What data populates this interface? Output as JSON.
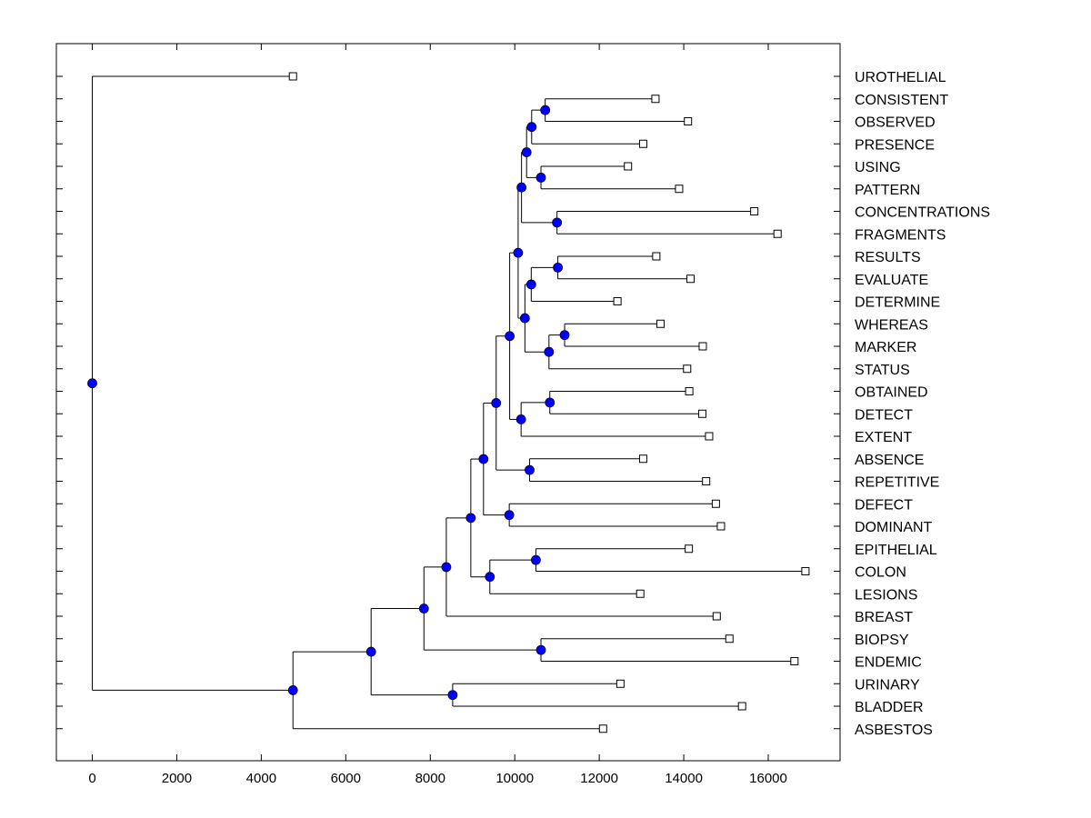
{
  "chart_data": {
    "type": "dendrogram",
    "title": "",
    "xlabel": "",
    "ylabel": "",
    "xlim": [
      -850,
      17700
    ],
    "x_ticks": [
      0,
      2000,
      4000,
      6000,
      8000,
      10000,
      12000,
      14000,
      16000
    ],
    "grid": false,
    "colors": {
      "node": "#0000ff",
      "line": "#000000",
      "leaf_marker": "#ffffff"
    },
    "leaves": [
      {
        "label": "UROTHELIAL",
        "value": 4750
      },
      {
        "label": "CONSISTENT",
        "value": 13330
      },
      {
        "label": "OBSERVED",
        "value": 14100
      },
      {
        "label": "PRESENCE",
        "value": 13040
      },
      {
        "label": "USING",
        "value": 12680
      },
      {
        "label": "PATTERN",
        "value": 13890
      },
      {
        "label": "CONCENTRATIONS",
        "value": 15670
      },
      {
        "label": "FRAGMENTS",
        "value": 16220
      },
      {
        "label": "RESULTS",
        "value": 13350
      },
      {
        "label": "EVALUATE",
        "value": 14160
      },
      {
        "label": "DETERMINE",
        "value": 12430
      },
      {
        "label": "WHEREAS",
        "value": 13450
      },
      {
        "label": "MARKER",
        "value": 14450
      },
      {
        "label": "STATUS",
        "value": 14080
      },
      {
        "label": "OBTAINED",
        "value": 14130
      },
      {
        "label": "DETECT",
        "value": 14440
      },
      {
        "label": "EXTENT",
        "value": 14600
      },
      {
        "label": "ABSENCE",
        "value": 13040
      },
      {
        "label": "REPETITIVE",
        "value": 14530
      },
      {
        "label": "DEFECT",
        "value": 14760
      },
      {
        "label": "DOMINANT",
        "value": 14880
      },
      {
        "label": "EPITHELIAL",
        "value": 14120
      },
      {
        "label": "COLON",
        "value": 16880
      },
      {
        "label": "LESIONS",
        "value": 12970
      },
      {
        "label": "BREAST",
        "value": 14780
      },
      {
        "label": "BIOPSY",
        "value": 15080
      },
      {
        "label": "ENDEMIC",
        "value": 16620
      },
      {
        "label": "URINARY",
        "value": 12500
      },
      {
        "label": "BLADDER",
        "value": 15380
      },
      {
        "label": "ASBESTOS",
        "value": 12090
      }
    ],
    "merges": [
      {
        "id": "n1",
        "value": 10720,
        "children": [
          "CONSISTENT",
          "OBSERVED"
        ]
      },
      {
        "id": "n2",
        "value": 10400,
        "children": [
          "n1",
          "PRESENCE"
        ]
      },
      {
        "id": "n3",
        "value": 10620,
        "children": [
          "USING",
          "PATTERN"
        ]
      },
      {
        "id": "n4",
        "value": 10280,
        "children": [
          "n2",
          "n3"
        ]
      },
      {
        "id": "n5",
        "value": 11000,
        "children": [
          "CONCENTRATIONS",
          "FRAGMENTS"
        ]
      },
      {
        "id": "n6",
        "value": 10160,
        "children": [
          "n4",
          "n5"
        ]
      },
      {
        "id": "n7",
        "value": 11020,
        "children": [
          "RESULTS",
          "EVALUATE"
        ]
      },
      {
        "id": "n8",
        "value": 10390,
        "children": [
          "n7",
          "DETERMINE"
        ]
      },
      {
        "id": "n9",
        "value": 11180,
        "children": [
          "WHEREAS",
          "MARKER"
        ]
      },
      {
        "id": "n10",
        "value": 10810,
        "children": [
          "n9",
          "STATUS"
        ]
      },
      {
        "id": "n11",
        "value": 10240,
        "children": [
          "n8",
          "n10"
        ]
      },
      {
        "id": "n12",
        "value": 10080,
        "children": [
          "n6",
          "n11"
        ]
      },
      {
        "id": "n13",
        "value": 10830,
        "children": [
          "OBTAINED",
          "DETECT"
        ]
      },
      {
        "id": "n14",
        "value": 10150,
        "children": [
          "n13",
          "EXTENT"
        ]
      },
      {
        "id": "n15",
        "value": 9880,
        "children": [
          "n12",
          "n14"
        ]
      },
      {
        "id": "n16",
        "value": 10350,
        "children": [
          "ABSENCE",
          "REPETITIVE"
        ]
      },
      {
        "id": "n17",
        "value": 9560,
        "children": [
          "n15",
          "n16"
        ]
      },
      {
        "id": "n18",
        "value": 9870,
        "children": [
          "DEFECT",
          "DOMINANT"
        ]
      },
      {
        "id": "n19",
        "value": 9260,
        "children": [
          "n17",
          "n18"
        ]
      },
      {
        "id": "n20",
        "value": 10500,
        "children": [
          "EPITHELIAL",
          "COLON"
        ]
      },
      {
        "id": "n21",
        "value": 9410,
        "children": [
          "n20",
          "LESIONS"
        ]
      },
      {
        "id": "n22",
        "value": 8960,
        "children": [
          "n19",
          "n21"
        ]
      },
      {
        "id": "n23",
        "value": 8380,
        "children": [
          "n22",
          "BREAST"
        ]
      },
      {
        "id": "n24",
        "value": 10620,
        "children": [
          "BIOPSY",
          "ENDEMIC"
        ]
      },
      {
        "id": "n25",
        "value": 7850,
        "children": [
          "n23",
          "n24"
        ]
      },
      {
        "id": "n26",
        "value": 8530,
        "children": [
          "URINARY",
          "BLADDER"
        ]
      },
      {
        "id": "n27",
        "value": 6600,
        "children": [
          "n25",
          "n26"
        ]
      },
      {
        "id": "n28",
        "value": 4750,
        "children": [
          "n27",
          "ASBESTOS"
        ]
      },
      {
        "id": "root",
        "value": 0,
        "children": [
          "UROTHELIAL",
          "n28"
        ]
      }
    ]
  }
}
